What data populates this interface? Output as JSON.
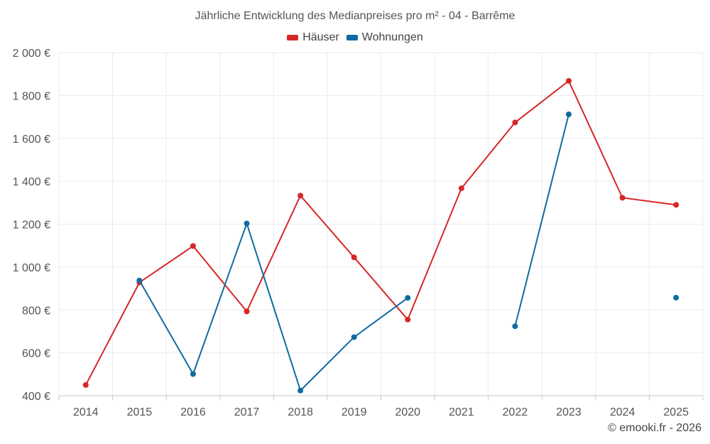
{
  "chart_data": {
    "type": "line",
    "title": "Jährliche Entwicklung des Medianpreises pro m² - 04 - Barrême",
    "xlabel": "",
    "ylabel": "",
    "categories": [
      "2014",
      "2015",
      "2016",
      "2017",
      "2018",
      "2019",
      "2020",
      "2021",
      "2022",
      "2023",
      "2024",
      "2025"
    ],
    "ylim": [
      400,
      2000
    ],
    "yticks": [
      400,
      600,
      800,
      1000,
      1200,
      1400,
      1600,
      1800,
      2000
    ],
    "ytick_labels": [
      "400 €",
      "600 €",
      "800 €",
      "1 000 €",
      "1 200 €",
      "1 400 €",
      "1 600 €",
      "1 800 €",
      "2 000 €"
    ],
    "grid": true,
    "legend_position": "top-center",
    "series": [
      {
        "name": "Häuser",
        "color": "#d62728",
        "values": [
          450,
          928,
          1098,
          793,
          1333,
          1045,
          755,
          1367,
          1674,
          1868,
          1323,
          1290
        ]
      },
      {
        "name": "Wohnungen",
        "color": "#0f6ba0",
        "values": [
          null,
          937,
          501,
          1203,
          424,
          673,
          856,
          null,
          724,
          1712,
          null,
          857
        ]
      }
    ]
  },
  "copyright": "© emooki.fr - 2026"
}
